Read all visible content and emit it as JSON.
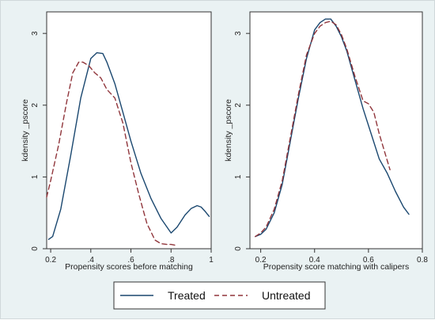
{
  "chart_data": [
    {
      "type": "line",
      "xlabel": "Propensity scores before matching",
      "ylabel": "kdensity _pscore",
      "xlim": [
        0.18,
        1.0
      ],
      "ylim": [
        0,
        3.3
      ],
      "xticks": [
        0.2,
        0.4,
        0.6,
        0.8,
        1
      ],
      "xtick_labels": [
        "0.2",
        ".4",
        ".6",
        ".8",
        "1"
      ],
      "yticks": [
        0,
        1,
        2,
        3
      ],
      "ytick_labels": [
        "0",
        "1",
        "2",
        "3"
      ],
      "grid": false,
      "series": [
        {
          "name": "Treated",
          "x": [
            0.19,
            0.21,
            0.25,
            0.3,
            0.35,
            0.4,
            0.43,
            0.46,
            0.48,
            0.52,
            0.56,
            0.6,
            0.65,
            0.7,
            0.75,
            0.8,
            0.83,
            0.87,
            0.9,
            0.93,
            0.95,
            0.97,
            0.99
          ],
          "y": [
            0.13,
            0.17,
            0.55,
            1.3,
            2.1,
            2.65,
            2.73,
            2.72,
            2.6,
            2.3,
            1.9,
            1.5,
            1.05,
            0.7,
            0.42,
            0.22,
            0.3,
            0.47,
            0.56,
            0.6,
            0.58,
            0.52,
            0.45
          ]
        },
        {
          "name": "Untreated",
          "x": [
            0.18,
            0.2,
            0.24,
            0.28,
            0.31,
            0.34,
            0.36,
            0.39,
            0.42,
            0.45,
            0.48,
            0.52,
            0.56,
            0.6,
            0.64,
            0.68,
            0.72,
            0.75,
            0.78,
            0.8,
            0.82
          ],
          "y": [
            0.72,
            0.95,
            1.45,
            2.05,
            2.45,
            2.6,
            2.6,
            2.55,
            2.45,
            2.38,
            2.22,
            2.1,
            1.75,
            1.2,
            0.75,
            0.35,
            0.12,
            0.07,
            0.06,
            0.06,
            0.05
          ]
        }
      ]
    },
    {
      "type": "line",
      "xlabel": "Propensity score matching with calipers",
      "ylabel": "kdensity _pscore",
      "xlim": [
        0.16,
        0.8
      ],
      "ylim": [
        0,
        3.3
      ],
      "xticks": [
        0.2,
        0.4,
        0.6,
        0.8
      ],
      "xtick_labels": [
        "0.2",
        "0.4",
        "0.6",
        "0.8"
      ],
      "yticks": [
        0,
        1,
        2,
        3
      ],
      "ytick_labels": [
        "0",
        "1",
        "2",
        "3"
      ],
      "grid": false,
      "series": [
        {
          "name": "Treated",
          "x": [
            0.18,
            0.2,
            0.22,
            0.25,
            0.28,
            0.31,
            0.34,
            0.37,
            0.4,
            0.42,
            0.44,
            0.46,
            0.48,
            0.5,
            0.52,
            0.55,
            0.58,
            0.61,
            0.64,
            0.67,
            0.7,
            0.73,
            0.75
          ],
          "y": [
            0.17,
            0.2,
            0.27,
            0.5,
            0.9,
            1.5,
            2.1,
            2.65,
            3.05,
            3.15,
            3.2,
            3.2,
            3.1,
            2.95,
            2.75,
            2.35,
            1.95,
            1.6,
            1.25,
            1.05,
            0.8,
            0.58,
            0.48
          ]
        },
        {
          "name": "Untreated",
          "x": [
            0.18,
            0.2,
            0.22,
            0.25,
            0.28,
            0.31,
            0.34,
            0.37,
            0.4,
            0.42,
            0.44,
            0.46,
            0.48,
            0.5,
            0.52,
            0.55,
            0.58,
            0.6,
            0.62,
            0.64,
            0.66,
            0.68
          ],
          "y": [
            0.17,
            0.22,
            0.3,
            0.55,
            0.95,
            1.55,
            2.15,
            2.7,
            3.0,
            3.1,
            3.15,
            3.17,
            3.12,
            2.98,
            2.78,
            2.4,
            2.06,
            2.02,
            1.9,
            1.6,
            1.35,
            1.1
          ]
        }
      ]
    }
  ],
  "legend": {
    "items": [
      {
        "label": "Treated",
        "color": "#1a476f",
        "style": "solid"
      },
      {
        "label": "Untreated",
        "color": "#90353b",
        "style": "dashed"
      }
    ]
  },
  "colors": {
    "treated": "#1a476f",
    "untreated": "#90353b",
    "outer_background": "#eaf2f3",
    "plot_background": "#ffffff"
  }
}
